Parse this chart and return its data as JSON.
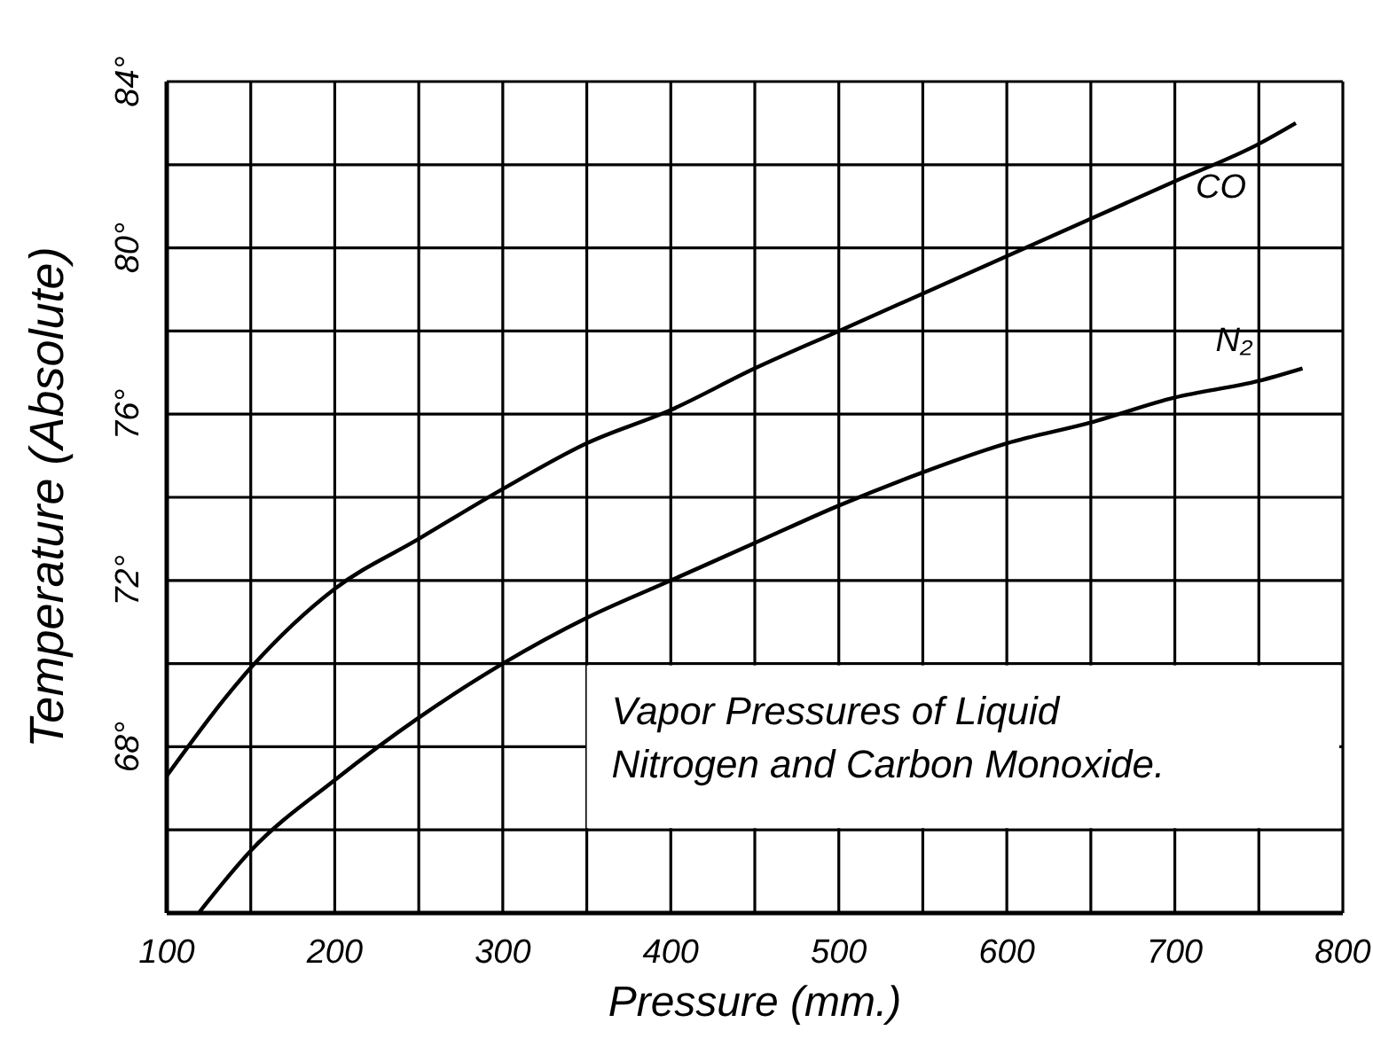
{
  "chart_data": {
    "type": "line",
    "xlabel": "Pressure (mm.)",
    "ylabel": "Temperature (Absolute)",
    "annotations": [
      "Vapor Pressures of Liquid\nNitrogen and Carbon Monoxide."
    ],
    "xlim": [
      100,
      800
    ],
    "ylim": [
      64,
      84
    ],
    "xticks": [
      100,
      {
        "value": 150,
        "label": null
      },
      200,
      {
        "value": 250,
        "label": null
      },
      300,
      {
        "value": 350,
        "label": null
      },
      400,
      {
        "value": 450,
        "label": null
      },
      500,
      {
        "value": 550,
        "label": null
      },
      600,
      {
        "value": 650,
        "label": null
      },
      700,
      {
        "value": 750,
        "label": null
      },
      800
    ],
    "yticks": [
      {
        "value": 64,
        "label": null
      },
      {
        "value": 66,
        "label": null
      },
      {
        "value": 68,
        "label": "68°"
      },
      {
        "value": 70,
        "label": null
      },
      {
        "value": 72,
        "label": "72°"
      },
      {
        "value": 74,
        "label": null
      },
      {
        "value": 76,
        "label": "76°"
      },
      {
        "value": 78,
        "label": null
      },
      {
        "value": 80,
        "label": "80°"
      },
      {
        "value": 82,
        "label": null
      },
      {
        "value": 84,
        "label": "84°"
      }
    ],
    "grid": true,
    "legend": false,
    "marker": "none",
    "line_style": "solid",
    "series": [
      {
        "name": "CO",
        "color": "#000000",
        "x": [
          100,
          150,
          200,
          250,
          300,
          350,
          400,
          450,
          500,
          550,
          600,
          650,
          700,
          750,
          772
        ],
        "values": [
          67.3,
          69.9,
          71.8,
          73.0,
          74.2,
          75.3,
          76.1,
          77.1,
          78.0,
          78.9,
          79.8,
          80.7,
          81.6,
          82.5,
          83.0
        ]
      },
      {
        "name": "N₂",
        "color": "#000000",
        "x": [
          119,
          150,
          200,
          250,
          300,
          350,
          400,
          450,
          500,
          550,
          600,
          650,
          700,
          750,
          776
        ],
        "values": [
          64.0,
          65.5,
          67.2,
          68.7,
          70.0,
          71.1,
          72.0,
          72.9,
          73.8,
          74.6,
          75.3,
          75.8,
          76.4,
          76.8,
          77.1
        ]
      }
    ]
  }
}
